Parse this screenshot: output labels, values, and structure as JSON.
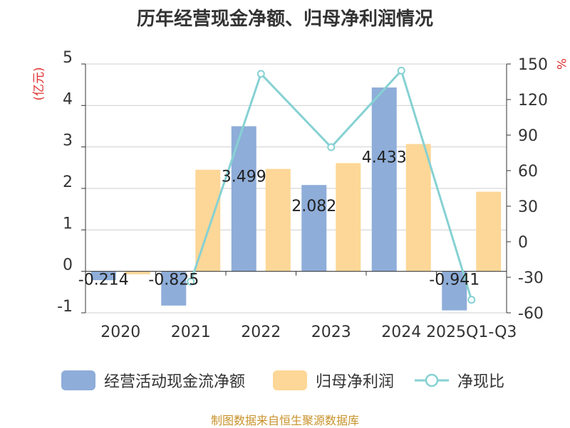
{
  "title": "历年经营现金净额、归母净利润情况",
  "source": "制图数据来自恒生聚源数据库",
  "chart_data": {
    "type": "bar",
    "title": "历年经营现金净额、归母净利润情况",
    "categories": [
      "2020",
      "2021",
      "2022",
      "2023",
      "2024",
      "2025Q1-Q3"
    ],
    "ylabel_left": "(亿元)",
    "ylabel_right": "%",
    "ylim_left": [
      -1,
      5
    ],
    "yticks_left": [
      -1,
      0,
      1,
      2,
      3,
      4,
      5
    ],
    "ylim_right": [
      -60,
      150
    ],
    "yticks_right": [
      -60,
      -30,
      0,
      30,
      60,
      90,
      120,
      150
    ],
    "grid": true,
    "legend_position": "bottom",
    "series": [
      {
        "name": "经营活动现金流净额",
        "type": "bar",
        "axis": "left",
        "color": "#8eadd9",
        "values": [
          -0.214,
          -0.825,
          3.499,
          2.082,
          4.433,
          -0.941
        ],
        "labels": [
          "-0.214",
          "-0.825",
          "3.499",
          "2.082",
          "4.433",
          "-0.941"
        ]
      },
      {
        "name": "归母净利润",
        "type": "bar",
        "axis": "left",
        "color": "#fdd797",
        "values": [
          -0.07,
          2.45,
          2.47,
          2.61,
          3.07,
          1.92
        ]
      },
      {
        "name": "净现比",
        "type": "line",
        "axis": "right",
        "color": "#86d1d3",
        "values": [
          null,
          -33.7,
          141.7,
          79.8,
          144.4,
          -49.0
        ]
      }
    ]
  }
}
